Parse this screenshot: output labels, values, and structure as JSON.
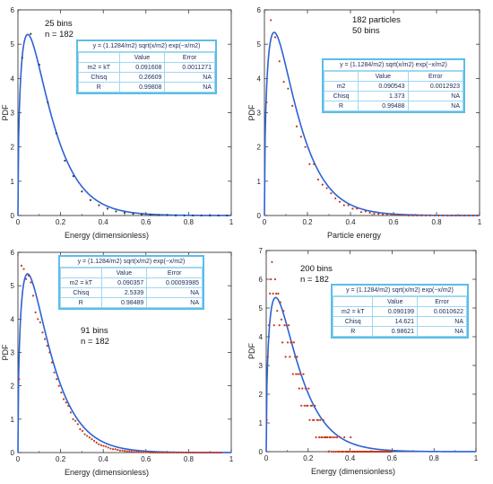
{
  "panels": [
    {
      "title": "",
      "xlabel": "Energy (dimensionless)",
      "ylabel": "PDF",
      "notes": [
        "25 bins",
        "n = 182"
      ],
      "fit_table": {
        "equation": "y = (1.1284/m2) sqrt(x/m2) exp(−x/m2)",
        "header": [
          "",
          "Value",
          "Error"
        ],
        "rows": [
          [
            "m2 = kT",
            "0.091608",
            "0.0011271"
          ],
          [
            "Chisq",
            "0.26609",
            "NA"
          ],
          [
            "R",
            "0.99808",
            "NA"
          ]
        ]
      }
    },
    {
      "title": "",
      "xlabel": "Particle energy",
      "ylabel": "PDF",
      "notes": [
        "182 particles",
        "50 bins"
      ],
      "fit_table": {
        "equation": "y = (1.1284/m2) sqrt(x/m2) exp(−x/m2)",
        "header": [
          "",
          "Value",
          "Error"
        ],
        "rows": [
          [
            "m2",
            "0.090543",
            "0.0012923"
          ],
          [
            "Chisq",
            "1.373",
            "NA"
          ],
          [
            "R",
            "0.99488",
            "NA"
          ]
        ]
      }
    },
    {
      "title": "",
      "xlabel": "Energy (dimensionless)",
      "ylabel": "PDF",
      "notes": [
        "91 bins",
        "n = 182"
      ],
      "fit_table": {
        "equation": "y = (1.1284/m2) sqrt(x/m2) exp(−x/m2)",
        "header": [
          "",
          "Value",
          "Error"
        ],
        "rows": [
          [
            "m2 = kT",
            "0.090357",
            "0.00093985"
          ],
          [
            "Chisq",
            "2.5339",
            "NA"
          ],
          [
            "R",
            "0.98489",
            "NA"
          ]
        ]
      }
    },
    {
      "title": "",
      "xlabel": "Energy (dimensionless)",
      "ylabel": "PDF",
      "notes": [
        "200 bins",
        "n = 182"
      ],
      "fit_table": {
        "equation": "y = (1.1284/m2) sqrt(x/m2) exp(−x/m2)",
        "header": [
          "",
          "Value",
          "Error"
        ],
        "rows": [
          [
            "m2 = kT",
            "0.090199",
            "0.0010622"
          ],
          [
            "Chisq",
            "14.621",
            "NA"
          ],
          [
            "R",
            "0.98621",
            "NA"
          ]
        ]
      }
    }
  ],
  "chart_data": [
    {
      "type": "scatter",
      "xlabel": "Energy (dimensionless)",
      "ylabel": "PDF",
      "xlim": [
        0,
        1
      ],
      "ylim": [
        0,
        6
      ],
      "x_ticks": [
        "0",
        "0.2",
        "0.4",
        "0.6",
        "0.8",
        "1"
      ],
      "y_ticks": [
        "0",
        "1",
        "2",
        "3",
        "4",
        "5",
        "6"
      ],
      "grid": false,
      "colors": {
        "points": "#3a3a3a",
        "fit": "#2b62d6"
      },
      "fit": {
        "model": "Maxwell-Boltzmann energy PDF",
        "m2": 0.091608
      },
      "series": [
        {
          "x": [
            0.02,
            0.06,
            0.1,
            0.14,
            0.18,
            0.22,
            0.26,
            0.3,
            0.34,
            0.38,
            0.42,
            0.46,
            0.5,
            0.54,
            0.58,
            0.62,
            0.66,
            0.7,
            0.74,
            0.78,
            0.82,
            0.86,
            0.9,
            0.94,
            0.98
          ],
          "y": [
            4.6,
            5.3,
            4.4,
            3.3,
            2.4,
            1.6,
            1.15,
            0.7,
            0.45,
            0.3,
            0.2,
            0.12,
            0.08,
            0.05,
            0.03,
            0.02,
            0.01,
            0.01,
            0.0,
            0.0,
            0.0,
            0.0,
            0.0,
            0.0,
            0.0
          ]
        }
      ]
    },
    {
      "type": "scatter",
      "xlabel": "Particle energy",
      "ylabel": "PDF",
      "xlim": [
        0,
        1
      ],
      "ylim": [
        0,
        6
      ],
      "x_ticks": [
        "0",
        "0.2",
        "0.4",
        "0.6",
        "0.8",
        "1"
      ],
      "y_ticks": [
        "0",
        "1",
        "2",
        "3",
        "4",
        "5",
        "6"
      ],
      "grid": false,
      "colors": {
        "points": "#c43a1c",
        "fit": "#2b62d6"
      },
      "fit": {
        "model": "Maxwell-Boltzmann energy PDF",
        "m2": 0.090543
      },
      "series": [
        {
          "x": [
            0.01,
            0.03,
            0.05,
            0.07,
            0.09,
            0.11,
            0.13,
            0.15,
            0.17,
            0.19,
            0.21,
            0.23,
            0.25,
            0.27,
            0.29,
            0.31,
            0.33,
            0.35,
            0.37,
            0.39,
            0.41,
            0.43,
            0.45,
            0.47,
            0.49,
            0.51,
            0.53,
            0.55,
            0.57,
            0.59,
            0.61,
            0.63,
            0.65,
            0.67,
            0.69,
            0.71,
            0.73,
            0.75,
            0.77,
            0.79,
            0.81,
            0.83,
            0.85,
            0.87,
            0.89,
            0.91,
            0.93,
            0.95,
            0.97,
            0.99
          ],
          "y": [
            3.3,
            5.7,
            5.2,
            4.5,
            3.9,
            3.7,
            3.2,
            2.6,
            2.3,
            2.0,
            1.5,
            1.5,
            1.05,
            0.9,
            0.8,
            0.65,
            0.5,
            0.4,
            0.3,
            0.3,
            0.2,
            0.2,
            0.1,
            0.12,
            0.08,
            0.05,
            0.05,
            0.03,
            0.03,
            0.02,
            0.02,
            0.01,
            0.01,
            0.0,
            0.0,
            0.0,
            0.0,
            0.0,
            0.0,
            0.0,
            0.0,
            0.0,
            0.0,
            0.0,
            0.0,
            0.0,
            0.0,
            0.0,
            0.0,
            0.0
          ]
        }
      ]
    },
    {
      "type": "scatter",
      "xlabel": "Energy (dimensionless)",
      "ylabel": "PDF",
      "xlim": [
        0,
        1
      ],
      "ylim": [
        0,
        6
      ],
      "x_ticks": [
        "0",
        "0.2",
        "0.4",
        "0.6",
        "0.8",
        "1"
      ],
      "y_ticks": [
        "0",
        "1",
        "2",
        "3",
        "4",
        "5",
        "6"
      ],
      "grid": false,
      "colors": {
        "points": "#c43a1c",
        "fit": "#2b62d6"
      },
      "fit": {
        "model": "Maxwell-Boltzmann energy PDF",
        "m2": 0.090357
      },
      "series": [
        {
          "x": [
            0.0055,
            0.0165,
            0.0275,
            0.0385,
            0.0495,
            0.0605,
            0.0715,
            0.0825,
            0.0935,
            0.1045,
            0.1155,
            0.1265,
            0.1375,
            0.1485,
            0.1595,
            0.1705,
            0.1815,
            0.1925,
            0.2035,
            0.2145,
            0.2255,
            0.2365,
            0.2475,
            0.2585,
            0.2695,
            0.2805,
            0.2915,
            0.3025,
            0.3135,
            0.3245,
            0.3355,
            0.3465,
            0.3575,
            0.3685,
            0.3795,
            0.3905,
            0.4015,
            0.4125,
            0.4235,
            0.4345,
            0.4455,
            0.4565,
            0.4675,
            0.4785,
            0.4895,
            0.5005,
            0.5115,
            0.5225,
            0.5335,
            0.5445,
            0.5555,
            0.5665,
            0.5775,
            0.5885,
            0.5995,
            0.6105,
            0.6215,
            0.6325,
            0.6435,
            0.6545,
            0.6655,
            0.6765,
            0.6875,
            0.6985,
            0.7095,
            0.7205,
            0.7315,
            0.7425,
            0.7535,
            0.7645,
            0.7755,
            0.7865,
            0.7975,
            0.8085,
            0.8195,
            0.8305,
            0.8415,
            0.8525,
            0.8635,
            0.8745,
            0.8855,
            0.8965,
            0.9075,
            0.9185,
            0.9295,
            0.9405,
            0.9515
          ],
          "y": [
            2.2,
            5.6,
            5.5,
            5.2,
            5.3,
            5.1,
            4.7,
            4.2,
            4.0,
            3.9,
            3.6,
            3.4,
            3.2,
            3.0,
            2.7,
            2.4,
            2.2,
            2.0,
            1.8,
            1.6,
            1.5,
            1.4,
            1.2,
            1.0,
            0.95,
            0.85,
            0.7,
            0.65,
            0.55,
            0.5,
            0.45,
            0.4,
            0.35,
            0.3,
            0.25,
            0.22,
            0.2,
            0.18,
            0.15,
            0.12,
            0.1,
            0.1,
            0.08,
            0.06,
            0.06,
            0.05,
            0.04,
            0.04,
            0.03,
            0.02,
            0.02,
            0.02,
            0.01,
            0.01,
            0.01,
            0.01,
            0.0,
            0.0,
            0.0,
            0.0,
            0.0,
            0.0,
            0.0,
            0.0,
            0.0,
            0.0,
            0.0,
            0.0,
            0.0,
            0.0,
            0.0,
            0.0,
            0.0,
            0.0,
            0.0,
            0.0,
            0.0,
            0.0,
            0.0,
            0.0,
            0.0,
            0.0,
            0.0,
            0.0,
            0.0,
            0.0,
            0.0
          ]
        }
      ]
    },
    {
      "type": "scatter",
      "xlabel": "Energy (dimensionless)",
      "ylabel": "PDF",
      "xlim": [
        0,
        1
      ],
      "ylim": [
        0,
        7
      ],
      "x_ticks": [
        "0",
        "0.2",
        "0.4",
        "0.6",
        "0.8",
        "1"
      ],
      "y_ticks": [
        "0",
        "1",
        "2",
        "3",
        "4",
        "5",
        "6",
        "7"
      ],
      "grid": false,
      "colors": {
        "points": "#c43a1c",
        "fit": "#2b62d6"
      },
      "fit": {
        "model": "Maxwell-Boltzmann energy PDF",
        "m2": 0.090199
      },
      "series": [
        {
          "x": [
            0.0025,
            0.0075,
            0.0125,
            0.0175,
            0.0225,
            0.0275,
            0.0325,
            0.0375,
            0.0425,
            0.0475,
            0.0525,
            0.0575,
            0.0625,
            0.0675,
            0.0725,
            0.0775,
            0.0825,
            0.0875,
            0.0925,
            0.0975,
            0.1025,
            0.1075,
            0.1125,
            0.1175,
            0.1225,
            0.1275,
            0.1325,
            0.1375,
            0.1425,
            0.1475,
            0.1525,
            0.1575,
            0.1625,
            0.1675,
            0.1725,
            0.1775,
            0.1825,
            0.1875,
            0.1925,
            0.1975,
            0.2025,
            0.2075,
            0.2125,
            0.2175,
            0.2225,
            0.2275,
            0.2325,
            0.2375,
            0.2425,
            0.2475,
            0.2525,
            0.2575,
            0.2625,
            0.2675,
            0.2725,
            0.2775,
            0.2825,
            0.2875,
            0.2925,
            0.2975,
            0.3025,
            0.3075,
            0.3125,
            0.3175,
            0.3225,
            0.3275,
            0.3325,
            0.3375,
            0.3425,
            0.3475,
            0.3525,
            0.3575,
            0.3625,
            0.3675,
            0.3725,
            0.3775,
            0.3825,
            0.3875,
            0.3925,
            0.3975,
            0.4025,
            0.4075,
            0.4125,
            0.4175,
            0.4225,
            0.4275,
            0.4325,
            0.4375,
            0.4425,
            0.4475,
            0.4525,
            0.4575,
            0.4625,
            0.4675,
            0.4725,
            0.4775,
            0.4825,
            0.4875,
            0.4925,
            0.4975,
            0.5025,
            0.5075,
            0.5125,
            0.5175,
            0.5225,
            0.5275,
            0.5325,
            0.5375,
            0.5425,
            0.5475,
            0.5525,
            0.5575,
            0.5625,
            0.5675,
            0.5725,
            0.5775,
            0.5825,
            0.5875,
            0.5925,
            0.5975
          ],
          "y": [
            1.1,
            3.3,
            4.4,
            5.5,
            6.0,
            6.6,
            5.5,
            4.4,
            6.0,
            5.5,
            4.9,
            5.5,
            4.4,
            5.2,
            4.6,
            3.8,
            4.9,
            4.4,
            3.3,
            4.4,
            3.8,
            4.4,
            3.3,
            3.8,
            3.8,
            2.7,
            3.8,
            3.3,
            2.7,
            3.3,
            2.7,
            2.2,
            2.7,
            1.6,
            2.2,
            2.7,
            1.6,
            2.2,
            1.6,
            1.6,
            2.2,
            1.1,
            1.6,
            1.6,
            1.1,
            1.1,
            1.6,
            0.5,
            1.1,
            1.1,
            0.5,
            1.1,
            0.5,
            0.5,
            1.1,
            0.5,
            0.5,
            0.5,
            0.5,
            0.0,
            0.5,
            0.5,
            0.0,
            0.5,
            0.0,
            0.5,
            0.0,
            0.5,
            0.0,
            0.0,
            0.5,
            0.0,
            0.0,
            0.0,
            0.5,
            0.0,
            0.0,
            0.0,
            0.0,
            0.0,
            0.5,
            0.0,
            0.0,
            0.0,
            0.0,
            0.0,
            0.0,
            0.0,
            0.0,
            0.0,
            0.0,
            0.0,
            0.0,
            0.0,
            0.0,
            0.0,
            0.0,
            0.0,
            0.0,
            0.0,
            0.0,
            0.0,
            0.0,
            0.0,
            0.0,
            0.0,
            0.0,
            0.0,
            0.0,
            0.0,
            0.0,
            0.0,
            0.0,
            0.0,
            0.0,
            0.0,
            0.0,
            0.0,
            0.0,
            0.0
          ]
        }
      ]
    }
  ]
}
